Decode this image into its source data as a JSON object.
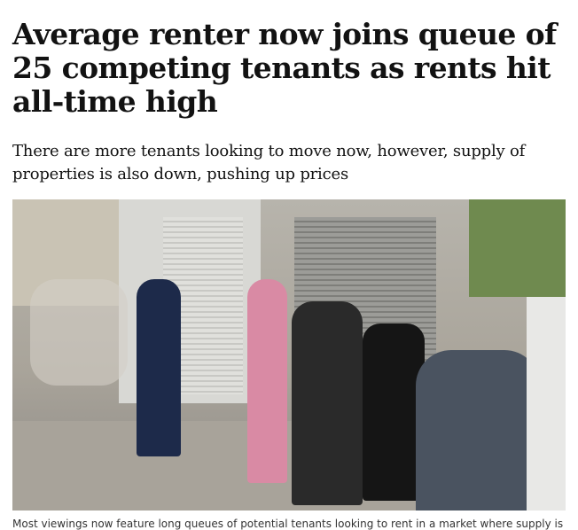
{
  "article": {
    "headline": "Average renter now joins queue of 25 competing tenants as rents hit all-time high",
    "standfirst": "There are more tenants looking to move now, however, supply of properties is also down, pushing up prices",
    "image": {
      "description_icon": "photo"
    },
    "caption": "Most viewings now feature long queues of potential tenants looking to rent in a market where supply is"
  }
}
